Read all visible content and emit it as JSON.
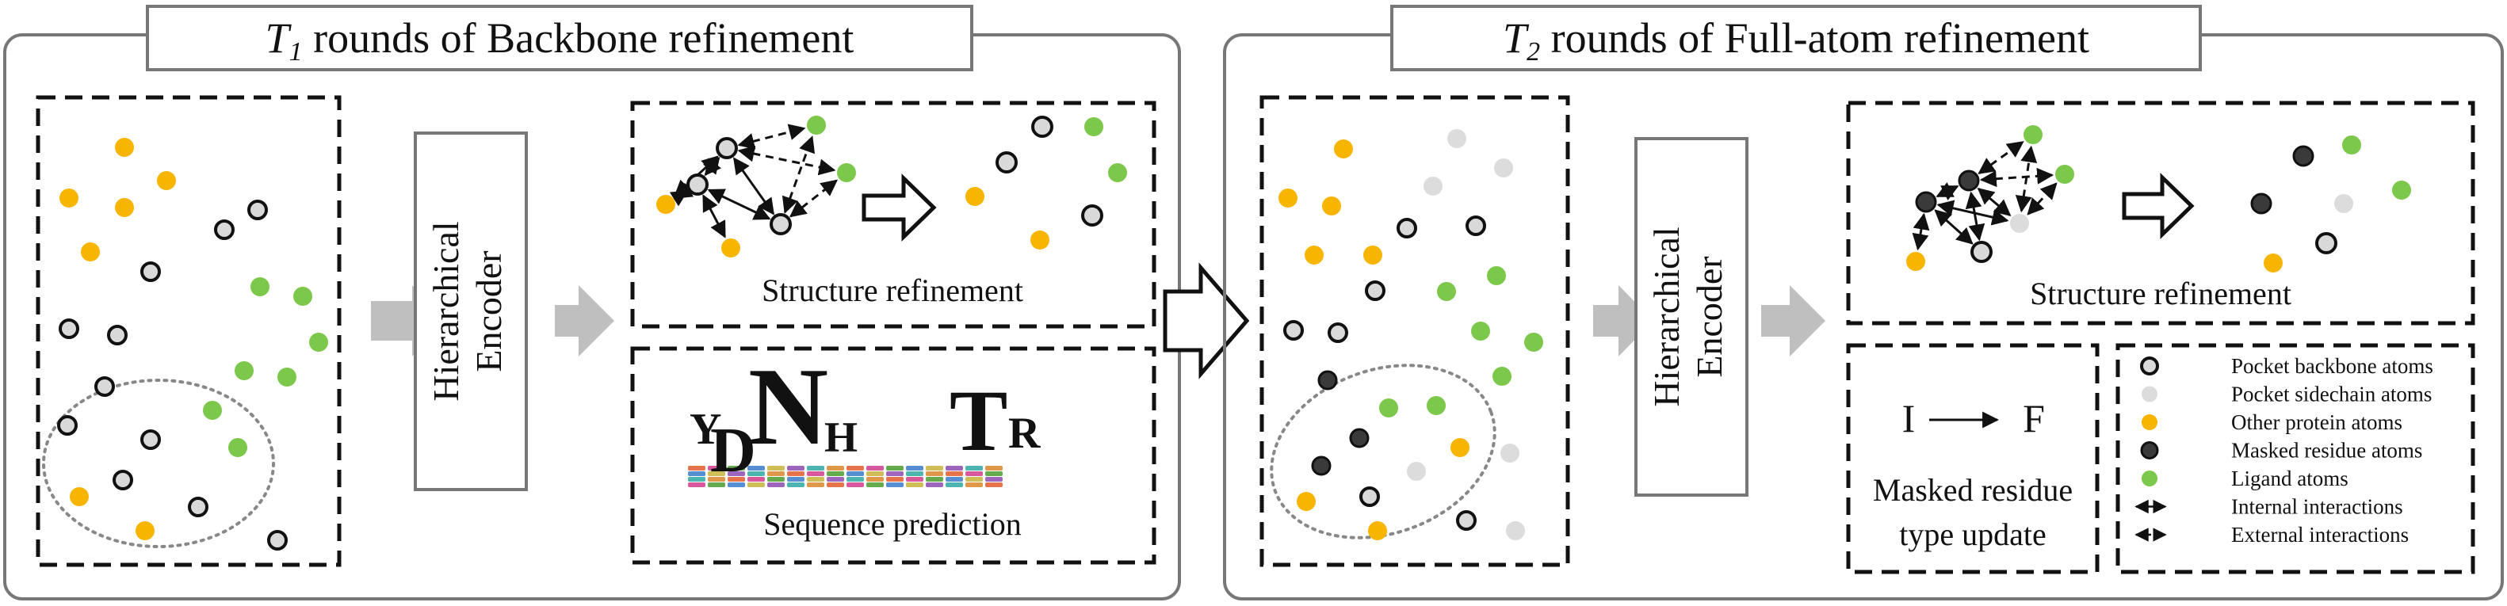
{
  "panel_left": {
    "title_symbol": "T",
    "title_subscript": "1",
    "title_rest": " rounds of Backbone refinement",
    "encoder_line1": "Hierarchical",
    "encoder_line2": "Encoder",
    "structure_caption": "Structure refinement",
    "sequence_caption": "Sequence prediction",
    "logo_letters": [
      "Y",
      "D",
      "N",
      "H",
      "T",
      "R"
    ]
  },
  "panel_right": {
    "title_symbol": "T",
    "title_subscript": "2",
    "title_rest": " rounds of Full-atom refinement",
    "encoder_line1": "Hierarchical",
    "encoder_line2": "Encoder",
    "structure_caption": "Structure refinement",
    "update_from": "I",
    "update_to": "F",
    "update_caption_line1": "Masked residue",
    "update_caption_line2": "type update"
  },
  "legend": [
    {
      "icon": "pocket-backbone-atom-icon",
      "label": "Pocket backbone atoms"
    },
    {
      "icon": "pocket-sidechain-atom-icon",
      "label": "Pocket sidechain atoms"
    },
    {
      "icon": "other-protein-atom-icon",
      "label": "Other protein atoms"
    },
    {
      "icon": "masked-residue-atom-icon",
      "label": "Masked residue atoms"
    },
    {
      "icon": "ligand-atom-icon",
      "label": "Ligand atoms"
    },
    {
      "icon": "internal-interaction-icon",
      "label": "Internal interactions"
    },
    {
      "icon": "external-interaction-icon",
      "label": "External interactions"
    }
  ],
  "colors": {
    "pocket_backbone": "#d9d9d9",
    "pocket_sidechain": "#dcdcdc",
    "other_protein": "#f7b500",
    "masked_residue": "#3a3a3a",
    "ligand": "#7cc84a",
    "arrow_gray": "#bfbfbf",
    "residue_from": "#d4662a",
    "residue_to": "#5a9a2a"
  }
}
